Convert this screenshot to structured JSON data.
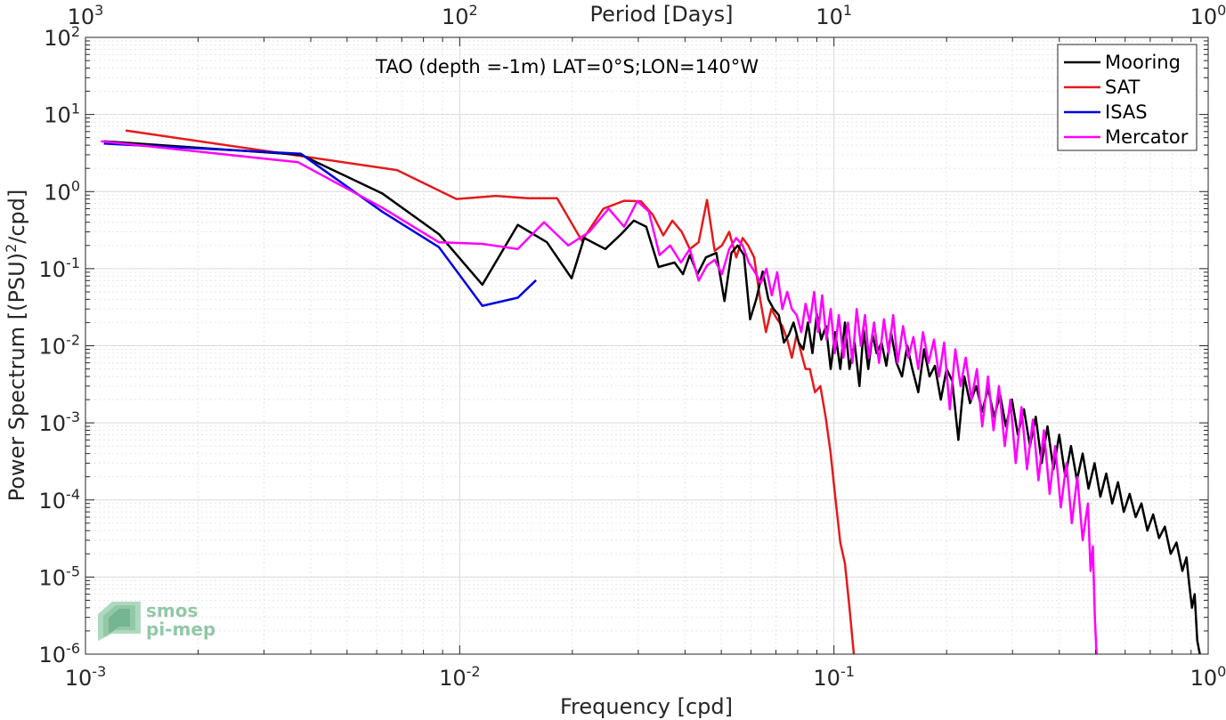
{
  "chart_data": {
    "type": "line",
    "title": "TAO (depth =-1m) LAT=0°S;LON=140°W",
    "xlabel": "Frequency [cpd]",
    "ylabel_parts": {
      "pre": "Power Spectrum [(PSU)",
      "sup": "2",
      "post": "/cpd]"
    },
    "top_xlabel": "Period [Days]",
    "x_scale": "log",
    "y_scale": "log",
    "xlim": [
      0.001,
      1
    ],
    "ylim": [
      1e-06,
      100
    ],
    "grid": true,
    "legend_position": "top-right",
    "x_ticks": [
      {
        "value": 0.001,
        "base": "10",
        "exp": "-3"
      },
      {
        "value": 0.01,
        "base": "10",
        "exp": "-2"
      },
      {
        "value": 0.1,
        "base": "10",
        "exp": "-1"
      },
      {
        "value": 1,
        "base": "10",
        "exp": "0"
      }
    ],
    "top_ticks": [
      {
        "value": 0.001,
        "base": "10",
        "exp": "3"
      },
      {
        "value": 0.01,
        "base": "10",
        "exp": "2"
      },
      {
        "value": 0.1,
        "base": "10",
        "exp": "1"
      },
      {
        "value": 1,
        "base": "10",
        "exp": "0"
      }
    ],
    "y_ticks": [
      {
        "value": 1e-06,
        "base": "10",
        "exp": "-6"
      },
      {
        "value": 1e-05,
        "base": "10",
        "exp": "-5"
      },
      {
        "value": 0.0001,
        "base": "10",
        "exp": "-4"
      },
      {
        "value": 0.001,
        "base": "10",
        "exp": "-3"
      },
      {
        "value": 0.01,
        "base": "10",
        "exp": "-2"
      },
      {
        "value": 0.1,
        "base": "10",
        "exp": "-1"
      },
      {
        "value": 1,
        "base": "10",
        "exp": "0"
      },
      {
        "value": 10,
        "base": "10",
        "exp": "1"
      },
      {
        "value": 100,
        "base": "10",
        "exp": "2"
      }
    ],
    "series": [
      {
        "name": "Mooring",
        "color": "#000000",
        "x": [
          0.00112,
          0.00376,
          0.0062,
          0.0088,
          0.0115,
          0.0143,
          0.0171,
          0.0199,
          0.0215,
          0.0245,
          0.027,
          0.0292,
          0.0315,
          0.034,
          0.0375,
          0.0395,
          0.0412,
          0.0432,
          0.0455,
          0.0485,
          0.051,
          0.0532,
          0.0553,
          0.0575,
          0.0597,
          0.062,
          0.0645,
          0.0668,
          0.069,
          0.0712,
          0.0735,
          0.0758,
          0.078,
          0.0805,
          0.0828,
          0.0852,
          0.0876,
          0.09,
          0.0925,
          0.0952,
          0.098,
          0.1008,
          0.104,
          0.107,
          0.11,
          0.1135,
          0.117,
          0.12,
          0.1235,
          0.1268,
          0.13,
          0.134,
          0.138,
          0.142,
          0.147,
          0.152,
          0.157,
          0.162,
          0.168,
          0.174,
          0.18,
          0.186,
          0.193,
          0.2,
          0.207,
          0.215,
          0.223,
          0.231,
          0.24,
          0.249,
          0.258,
          0.268,
          0.278,
          0.288,
          0.299,
          0.31,
          0.322,
          0.334,
          0.346,
          0.359,
          0.372,
          0.386,
          0.4,
          0.415,
          0.43,
          0.446,
          0.462,
          0.479,
          0.497,
          0.515,
          0.534,
          0.554,
          0.574,
          0.595,
          0.617,
          0.64,
          0.663,
          0.688,
          0.713,
          0.739,
          0.766,
          0.794,
          0.823,
          0.853,
          0.875,
          0.89,
          0.905,
          0.92,
          0.935,
          0.95
        ],
        "y": [
          4.5,
          3.0,
          0.95,
          0.28,
          0.062,
          0.37,
          0.22,
          0.075,
          0.25,
          0.18,
          0.28,
          0.42,
          0.35,
          0.105,
          0.12,
          0.085,
          0.15,
          0.085,
          0.14,
          0.16,
          0.038,
          0.16,
          0.2,
          0.15,
          0.022,
          0.04,
          0.092,
          0.04,
          0.03,
          0.025,
          0.011,
          0.014,
          0.02,
          0.011,
          0.009,
          0.02,
          0.008,
          0.026,
          0.012,
          0.018,
          0.005,
          0.015,
          0.005,
          0.02,
          0.005,
          0.011,
          0.003,
          0.016,
          0.005,
          0.014,
          0.008,
          0.011,
          0.0055,
          0.015,
          0.006,
          0.004,
          0.01,
          0.005,
          0.0025,
          0.009,
          0.004,
          0.0055,
          0.002,
          0.005,
          0.0035,
          0.0006,
          0.004,
          0.0018,
          0.003,
          0.0014,
          0.0028,
          0.0012,
          0.0023,
          0.0009,
          0.002,
          0.0007,
          0.0015,
          0.0005,
          0.0012,
          0.0003,
          0.0009,
          0.00025,
          0.0007,
          0.0002,
          0.0005,
          0.00018,
          0.0004,
          0.00014,
          0.0003,
          0.00011,
          0.00022,
          9e-05,
          0.00017,
          7e-05,
          0.00012,
          6e-05,
          9e-05,
          4e-05,
          6.5e-05,
          3.2e-05,
          4.5e-05,
          2e-05,
          2.8e-05,
          1.2e-05,
          1.8e-05,
          8e-06,
          4e-06,
          6e-06,
          1.5e-06,
          1e-06
        ]
      },
      {
        "name": "SAT",
        "color": "#e41a1c",
        "x": [
          0.00128,
          0.0068,
          0.0098,
          0.0125,
          0.0152,
          0.0182,
          0.0212,
          0.0242,
          0.0275,
          0.0305,
          0.0328,
          0.035,
          0.037,
          0.0392,
          0.0412,
          0.0435,
          0.0458,
          0.048,
          0.0502,
          0.0525,
          0.0548,
          0.057,
          0.059,
          0.0612,
          0.0635,
          0.0658,
          0.068,
          0.0705,
          0.0728,
          0.075,
          0.0772,
          0.0795,
          0.0818,
          0.084,
          0.0862,
          0.089,
          0.092,
          0.095,
          0.098,
          0.101,
          0.104,
          0.107,
          0.11,
          0.113
        ],
        "y": [
          6.2,
          1.9,
          0.8,
          0.88,
          0.82,
          0.82,
          0.23,
          0.6,
          0.76,
          0.75,
          0.5,
          0.27,
          0.42,
          0.3,
          0.18,
          0.22,
          0.78,
          0.17,
          0.2,
          0.3,
          0.14,
          0.25,
          0.2,
          0.14,
          0.04,
          0.015,
          0.03,
          0.022,
          0.018,
          0.012,
          0.007,
          0.014,
          0.008,
          0.005,
          0.005,
          0.0025,
          0.003,
          0.0012,
          0.0004,
          0.0001,
          2.8e-05,
          1.5e-05,
          4e-06,
          1e-06
        ]
      },
      {
        "name": "ISAS",
        "color": "#0000e0",
        "x": [
          0.00112,
          0.00376,
          0.0062,
          0.0088,
          0.0115,
          0.0143,
          0.016
        ],
        "y": [
          4.2,
          3.1,
          0.55,
          0.19,
          0.033,
          0.042,
          0.071
        ]
      },
      {
        "name": "Mercator",
        "color": "#ff00ff",
        "x": [
          0.0011,
          0.0037,
          0.0062,
          0.0088,
          0.0115,
          0.0143,
          0.0168,
          0.0195,
          0.0222,
          0.025,
          0.0275,
          0.0298,
          0.032,
          0.0342,
          0.0365,
          0.039,
          0.0412,
          0.0435,
          0.0458,
          0.048,
          0.0502,
          0.0525,
          0.0548,
          0.057,
          0.0592,
          0.0615,
          0.0638,
          0.066,
          0.0682,
          0.0705,
          0.0728,
          0.075,
          0.0772,
          0.0795,
          0.0818,
          0.084,
          0.0862,
          0.0885,
          0.0908,
          0.093,
          0.0955,
          0.098,
          0.1005,
          0.103,
          0.106,
          0.109,
          0.112,
          0.115,
          0.118,
          0.121,
          0.124,
          0.128,
          0.132,
          0.136,
          0.14,
          0.144,
          0.148,
          0.153,
          0.158,
          0.163,
          0.168,
          0.173,
          0.179,
          0.185,
          0.191,
          0.197,
          0.204,
          0.211,
          0.218,
          0.225,
          0.233,
          0.241,
          0.249,
          0.258,
          0.267,
          0.276,
          0.286,
          0.296,
          0.306,
          0.317,
          0.328,
          0.34,
          0.352,
          0.364,
          0.377,
          0.39,
          0.404,
          0.418,
          0.432,
          0.447,
          0.462,
          0.477,
          0.485,
          0.492,
          0.498,
          0.503
        ],
        "y": [
          4.5,
          2.4,
          0.62,
          0.22,
          0.21,
          0.18,
          0.4,
          0.2,
          0.3,
          0.6,
          0.35,
          0.75,
          0.55,
          0.15,
          0.2,
          0.12,
          0.18,
          0.07,
          0.11,
          0.13,
          0.085,
          0.18,
          0.25,
          0.2,
          0.12,
          0.09,
          0.065,
          0.1,
          0.045,
          0.09,
          0.03,
          0.05,
          0.03,
          0.025,
          0.015,
          0.035,
          0.02,
          0.05,
          0.015,
          0.045,
          0.012,
          0.03,
          0.008,
          0.025,
          0.007,
          0.02,
          0.006,
          0.03,
          0.01,
          0.025,
          0.007,
          0.02,
          0.006,
          0.022,
          0.008,
          0.025,
          0.006,
          0.018,
          0.007,
          0.013,
          0.005,
          0.015,
          0.006,
          0.012,
          0.004,
          0.011,
          0.0015,
          0.009,
          0.003,
          0.007,
          0.002,
          0.005,
          0.0009,
          0.004,
          0.0008,
          0.003,
          0.0005,
          0.002,
          0.0003,
          0.0016,
          0.00025,
          0.0011,
          0.00018,
          0.0008,
          0.00012,
          0.0005,
          8e-05,
          0.0003,
          5e-05,
          0.0002,
          3e-05,
          9e-05,
          1.2e-05,
          2.5e-05,
          3e-06,
          1e-06
        ]
      }
    ]
  },
  "logo": {
    "line1": "smos",
    "line2": "pi-mep",
    "color": "#7fbf9a"
  }
}
